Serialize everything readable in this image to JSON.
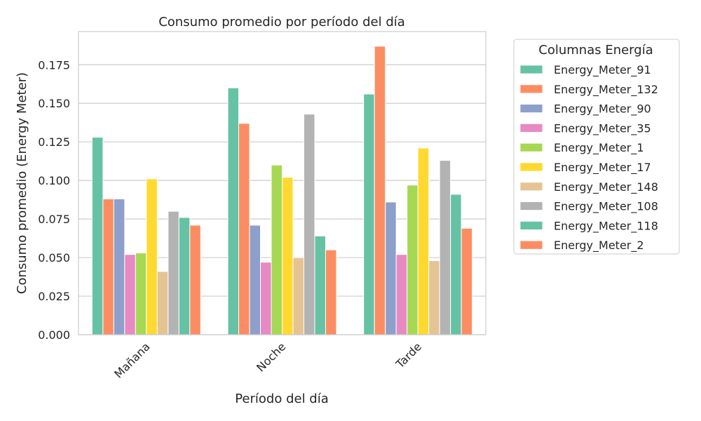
{
  "chart_data": {
    "type": "bar",
    "title": "Consumo promedio por período del día",
    "xlabel": "Período del día",
    "ylabel": "Consumo promedio (Energy Meter)",
    "categories": [
      "Mañana",
      "Noche",
      "Tarde"
    ],
    "ylim": [
      0,
      0.1965
    ],
    "yticks": [
      "0.000",
      "0.025",
      "0.050",
      "0.075",
      "0.100",
      "0.125",
      "0.150",
      "0.175"
    ],
    "ytick_values": [
      0,
      0.025,
      0.05,
      0.075,
      0.1,
      0.125,
      0.15,
      0.175
    ],
    "grid": true,
    "legend": {
      "title": "Columnas Energía",
      "placement": "outside-right"
    },
    "series": [
      {
        "name": "Energy_Meter_91",
        "color": "#66c2a5",
        "values": [
          0.128,
          0.16,
          0.156
        ]
      },
      {
        "name": "Energy_Meter_132",
        "color": "#fc8d62",
        "values": [
          0.088,
          0.137,
          0.187
        ]
      },
      {
        "name": "Energy_Meter_90",
        "color": "#8da0cb",
        "values": [
          0.088,
          0.071,
          0.086
        ]
      },
      {
        "name": "Energy_Meter_35",
        "color": "#e78ac3",
        "values": [
          0.052,
          0.047,
          0.052
        ]
      },
      {
        "name": "Energy_Meter_1",
        "color": "#a6d854",
        "values": [
          0.053,
          0.11,
          0.097
        ]
      },
      {
        "name": "Energy_Meter_17",
        "color": "#ffd92f",
        "values": [
          0.101,
          0.102,
          0.121
        ]
      },
      {
        "name": "Energy_Meter_148",
        "color": "#e5c494",
        "values": [
          0.041,
          0.05,
          0.048
        ]
      },
      {
        "name": "Energy_Meter_108",
        "color": "#b3b3b3",
        "values": [
          0.08,
          0.143,
          0.113
        ]
      },
      {
        "name": "Energy_Meter_118",
        "color": "#66c2a5",
        "values": [
          0.076,
          0.064,
          0.091
        ]
      },
      {
        "name": "Energy_Meter_2",
        "color": "#fc8d62",
        "values": [
          0.071,
          0.055,
          0.069
        ]
      }
    ]
  }
}
